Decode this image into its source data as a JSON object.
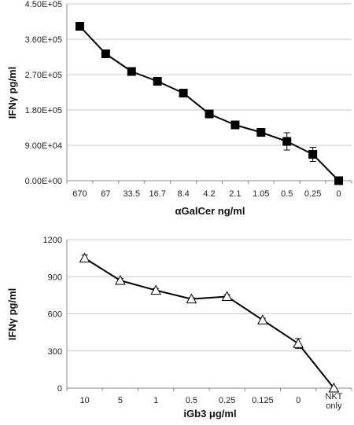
{
  "chart_data": [
    {
      "type": "line",
      "ylabel": "IFNγ pg/ml",
      "xlabel": "αGalCer ng/ml",
      "categories": [
        "670",
        "67",
        "33.5",
        "16.7",
        "8.4",
        "4.2",
        "2.1",
        "1.05",
        "0.5",
        "0.25",
        "0"
      ],
      "yticks": [
        "0.00E+00",
        "9.00E+04",
        "1.80E+05",
        "2.70E+05",
        "3.60E+05",
        "4.50E+05"
      ],
      "ylim": [
        0,
        450000
      ],
      "grid": true,
      "series": [
        {
          "marker": "square-filled",
          "values": [
            393000,
            323000,
            278000,
            253000,
            223000,
            170000,
            142000,
            123000,
            100000,
            67000,
            0
          ],
          "errors": [
            5000,
            5000,
            5000,
            6000,
            5000,
            5000,
            5000,
            6000,
            22000,
            18000,
            0
          ]
        }
      ],
      "colors": {
        "line": "#000000",
        "marker": "#000000",
        "grid": "#c8c8c8",
        "axis": "#8a8a8a"
      }
    },
    {
      "type": "line",
      "ylabel": "IFNγ pg/ml",
      "xlabel": "iGb3 μg/ml",
      "categories": [
        "10",
        "5",
        "1",
        "0.5",
        "0.25",
        "0.125",
        "0",
        "NKT only"
      ],
      "yticks": [
        "0",
        "300",
        "600",
        "900",
        "1200"
      ],
      "ylim": [
        0,
        1200
      ],
      "grid": true,
      "series": [
        {
          "marker": "triangle-open",
          "values": [
            1050,
            870,
            790,
            720,
            740,
            550,
            360,
            0
          ],
          "errors": [
            25,
            15,
            15,
            10,
            15,
            15,
            40,
            0
          ]
        }
      ],
      "colors": {
        "line": "#000000",
        "marker": "#ffffff",
        "grid": "#c8c8c8",
        "axis": "#8a8a8a"
      }
    }
  ]
}
